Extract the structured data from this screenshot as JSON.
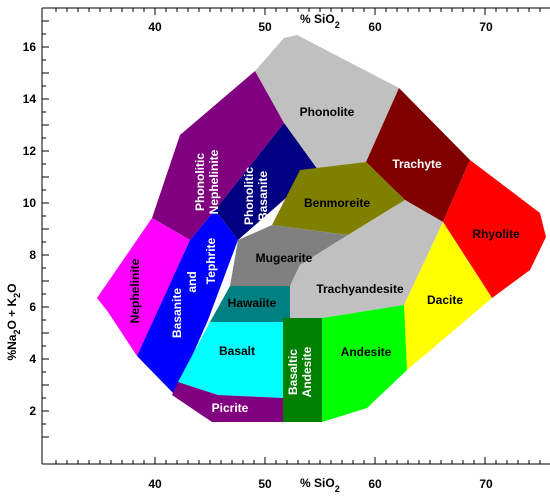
{
  "axes": {
    "x_title": "% SiO",
    "x_title_sub": "2",
    "x_ticks": [
      "40",
      "50",
      "60",
      "70"
    ],
    "y_title": "%Na",
    "y_title_sub1": "2",
    "y_title_mid": "O + K",
    "y_title_sub2": "2",
    "y_title_end": "O",
    "y_ticks": [
      "2",
      "4",
      "6",
      "8",
      "10",
      "12",
      "14",
      "16"
    ]
  },
  "fields": [
    {
      "id": "phonolite",
      "lines": [
        "Phonolite"
      ],
      "color": "#c0c0c0"
    },
    {
      "id": "trachyte",
      "lines": [
        "Trachyte"
      ],
      "color": "#800000"
    },
    {
      "id": "rhyolite",
      "lines": [
        "Rhyolite"
      ],
      "color": "#ff0000"
    },
    {
      "id": "phonolitic-nephelinite",
      "lines": [
        "Phonolitic",
        "Nephelinite"
      ],
      "color": "#800080"
    },
    {
      "id": "phonolitic-basanite",
      "lines": [
        "Phonolitic",
        "Basanite"
      ],
      "color": "#000080"
    },
    {
      "id": "benmoreite",
      "lines": [
        "Benmoreite"
      ],
      "color": "#808000"
    },
    {
      "id": "nephelinite",
      "lines": [
        "Nephelinite"
      ],
      "color": "#ff00ff"
    },
    {
      "id": "basanite-tephrite",
      "lines": [
        "Basanite",
        "and",
        "Tephrite"
      ],
      "color": "#0000ff"
    },
    {
      "id": "mugearite",
      "lines": [
        "Mugearite"
      ],
      "color": "#808080"
    },
    {
      "id": "trachyandesite",
      "lines": [
        "Trachyandesite"
      ],
      "color": "#c0c0c0"
    },
    {
      "id": "hawaiite",
      "lines": [
        "Hawaiite"
      ],
      "color": "#008080"
    },
    {
      "id": "dacite",
      "lines": [
        "Dacite"
      ],
      "color": "#ffff00"
    },
    {
      "id": "basalt",
      "lines": [
        "Basalt"
      ],
      "color": "#00ffff"
    },
    {
      "id": "basaltic-andesite",
      "lines": [
        "Basaltic",
        "Andesite"
      ],
      "color": "#008000"
    },
    {
      "id": "andesite",
      "lines": [
        "Andesite"
      ],
      "color": "#00ff00"
    },
    {
      "id": "picrite",
      "lines": [
        "Picrite"
      ],
      "color": "#800080"
    }
  ]
}
